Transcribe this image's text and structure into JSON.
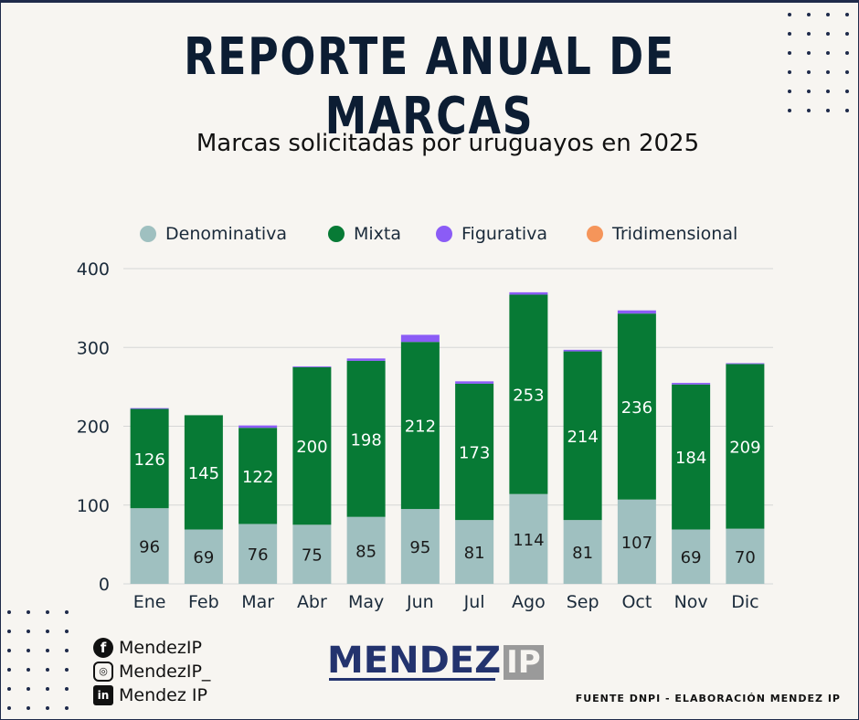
{
  "header": {
    "title": "REPORTE ANUAL DE MARCAS",
    "subtitle": "Marcas solicitadas por uruguayos en 2025"
  },
  "chart_data": {
    "type": "bar",
    "stacked": true,
    "title": "Marcas solicitadas por uruguayos en 2025",
    "categories": [
      "Ene",
      "Feb",
      "Mar",
      "Abr",
      "May",
      "Jun",
      "Jul",
      "Ago",
      "Sep",
      "Oct",
      "Nov",
      "Dic"
    ],
    "ylim": [
      0,
      400
    ],
    "yticks": [
      0,
      100,
      200,
      300,
      400
    ],
    "grid": true,
    "legend": "top",
    "series": [
      {
        "name": "Denominativa",
        "color": "#9fc0c0",
        "label_color": "#1a1a1a",
        "values": [
          96,
          69,
          76,
          75,
          85,
          95,
          81,
          114,
          81,
          107,
          69,
          70
        ]
      },
      {
        "name": "Mixta",
        "color": "#077a35",
        "label_color": "#ffffff",
        "values": [
          126,
          145,
          122,
          200,
          198,
          212,
          173,
          253,
          214,
          236,
          184,
          209
        ]
      },
      {
        "name": "Figurativa",
        "color": "#8b5cf6",
        "values": [
          1,
          0,
          3,
          1,
          3,
          9,
          3,
          3,
          2,
          4,
          2,
          1
        ]
      },
      {
        "name": "Tridimensional",
        "color": "#f5955a",
        "values": [
          0,
          0,
          0,
          0,
          0,
          0,
          0,
          0,
          0,
          0,
          0,
          0
        ]
      }
    ]
  },
  "footer": {
    "social": [
      {
        "icon": "facebook-icon",
        "glyph": "f",
        "label": "MendezIP"
      },
      {
        "icon": "instagram-icon",
        "glyph": "◎",
        "label": "MendezIP_"
      },
      {
        "icon": "linkedin-icon",
        "glyph": "in",
        "label": "Mendez IP"
      }
    ],
    "logo_text": "MENDEZ",
    "logo_suffix": "IP",
    "source": "FUENTE DNPI - ELABORACIÓN MENDEZ IP"
  }
}
